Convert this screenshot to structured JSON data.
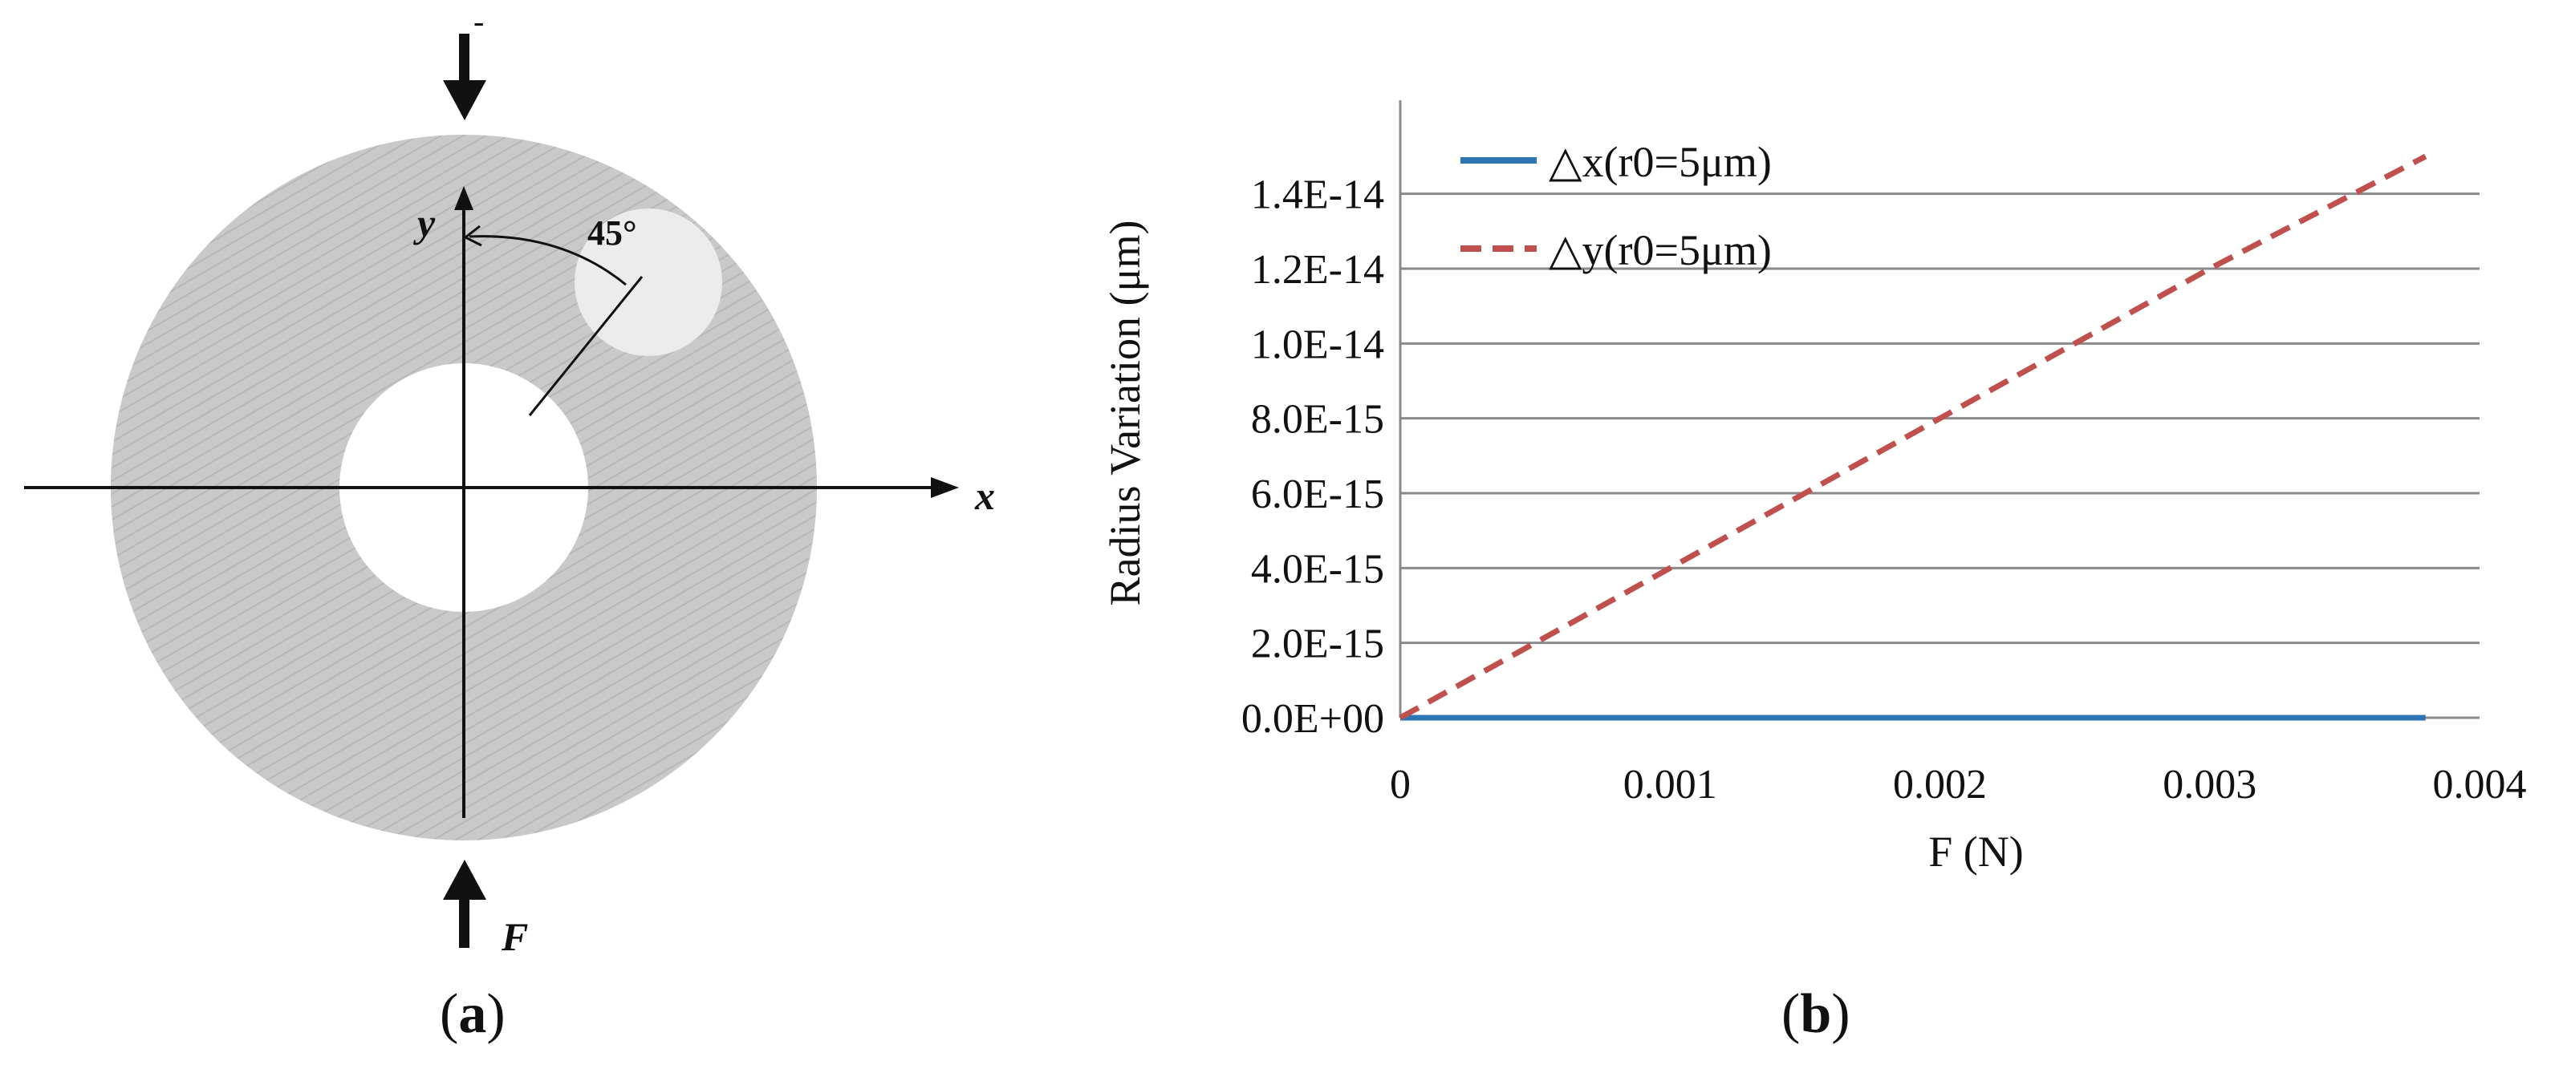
{
  "diagram": {
    "force_label": "F",
    "top_mark": "-",
    "x_axis_label": "x",
    "y_axis_label": "y",
    "angle_label": "45°",
    "caption": "(a)",
    "caption_letter": "a"
  },
  "chart_caption": "(b)",
  "chart_caption_letter": "b",
  "chart_data": {
    "type": "line",
    "title": "",
    "xlabel": "F (N)",
    "ylabel": "Radius Variation (μm)",
    "xlim": [
      0,
      0.004
    ],
    "ylim": [
      0,
      1.5e-14
    ],
    "x_ticks": [
      0,
      0.001,
      0.002,
      0.003,
      0.004
    ],
    "x_tick_labels": [
      "0",
      "0.001",
      "0.002",
      "0.003",
      "0.004"
    ],
    "y_ticks": [
      0,
      2e-15,
      4e-15,
      6e-15,
      8e-15,
      1e-14,
      1.2e-14,
      1.4e-14
    ],
    "y_tick_labels": [
      "0.0E+00",
      "2.0E-15",
      "4.0E-15",
      "6.0E-15",
      "8.0E-15",
      "1.0E-14",
      "1.2E-14",
      "1.4E-14"
    ],
    "grid": true,
    "legend_position": "top-left",
    "series": [
      {
        "name": "△x(r0=5μm)",
        "color": "#2e75b6",
        "style": "solid",
        "x": [
          0,
          0.001,
          0.002,
          0.003,
          0.0038
        ],
        "y": [
          0,
          0,
          0,
          0,
          0
        ]
      },
      {
        "name": "△y(r0=5μm)",
        "color": "#c0504d",
        "style": "dashed",
        "x": [
          0,
          0.001,
          0.002,
          0.003,
          0.0038
        ],
        "y": [
          0,
          4e-15,
          8e-15,
          1.2e-14,
          1.5e-14
        ]
      }
    ]
  }
}
